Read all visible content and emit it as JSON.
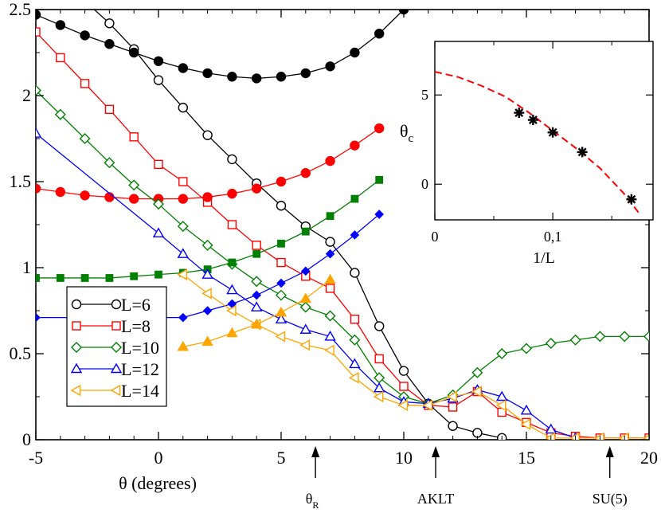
{
  "chart_data": [
    {
      "type": "line",
      "xlabel": "θ (degrees)",
      "ylabel": "",
      "xlim": [
        -5,
        20
      ],
      "ylim": [
        0,
        2.5
      ],
      "xticks": [
        "-5",
        "0",
        "5",
        "10",
        "15",
        "20"
      ],
      "yticks": [
        "0",
        "0.5",
        "1",
        "1.5",
        "2",
        "2.5"
      ],
      "grid": false,
      "legend_position": "bottom-left",
      "annotations": [
        {
          "text": "θ",
          "sub": "R",
          "x": 6.4
        },
        {
          "text": "AKLT",
          "x": 11.3
        },
        {
          "text": "SU(5)",
          "x": 18.4
        }
      ],
      "series": [
        {
          "name": "L=6",
          "color": "#000000",
          "marker": "circle-open",
          "legend": true,
          "x": [
            -4,
            -3,
            -2,
            -1,
            0,
            1,
            2,
            3,
            4,
            5,
            6,
            7,
            8,
            9,
            10,
            11,
            12,
            13,
            14
          ],
          "y": [
            2.65,
            2.55,
            2.42,
            2.27,
            2.09,
            1.93,
            1.77,
            1.63,
            1.49,
            1.36,
            1.24,
            1.15,
            0.97,
            0.66,
            0.4,
            0.21,
            0.08,
            0.04,
            0.01
          ]
        },
        {
          "name": "L=6 (filled)",
          "color": "#000000",
          "marker": "circle-filled",
          "legend": false,
          "x": [
            -5,
            -4,
            -3,
            -2,
            -1,
            0,
            1,
            2,
            3,
            4,
            5,
            6,
            7,
            8,
            9,
            10
          ],
          "y": [
            2.47,
            2.41,
            2.35,
            2.3,
            2.25,
            2.2,
            2.16,
            2.13,
            2.11,
            2.1,
            2.11,
            2.13,
            2.17,
            2.25,
            2.36,
            2.5
          ]
        },
        {
          "name": "L=8",
          "color": "#ff0000",
          "marker": "square-open",
          "legend": true,
          "x": [
            -5,
            -4,
            -3,
            -2,
            -1,
            0,
            1,
            2,
            3,
            4,
            5,
            6,
            7,
            8,
            9,
            10,
            11,
            12,
            13,
            14,
            15,
            16,
            17,
            18,
            19,
            20
          ],
          "y": [
            2.37,
            2.22,
            2.07,
            1.92,
            1.76,
            1.6,
            1.5,
            1.38,
            1.25,
            1.13,
            1.03,
            0.95,
            0.88,
            0.7,
            0.47,
            0.31,
            0.2,
            0.19,
            0.28,
            0.16,
            0.1,
            0.04,
            0.02,
            0.01,
            0.01,
            0.01
          ]
        },
        {
          "name": "L=8 (filled)",
          "color": "#ff0000",
          "marker": "circle-filled",
          "legend": false,
          "x": [
            -5,
            -4,
            -3,
            -2,
            -1,
            0,
            1,
            2,
            3,
            4,
            5,
            6,
            7,
            8,
            9
          ],
          "y": [
            1.46,
            1.44,
            1.42,
            1.41,
            1.4,
            1.4,
            1.4,
            1.41,
            1.43,
            1.46,
            1.5,
            1.55,
            1.62,
            1.71,
            1.81
          ]
        },
        {
          "name": "L=10",
          "color": "#008000",
          "marker": "diamond-open",
          "legend": true,
          "x": [
            -5,
            -4,
            -3,
            -2,
            -1,
            0,
            1,
            2,
            3,
            4,
            5,
            6,
            7,
            8,
            9,
            10,
            11,
            12,
            13,
            14,
            15,
            16,
            17,
            18,
            19,
            20
          ],
          "y": [
            2.03,
            1.89,
            1.75,
            1.61,
            1.48,
            1.37,
            1.24,
            1.13,
            1.02,
            0.92,
            0.84,
            0.77,
            0.72,
            0.58,
            0.36,
            0.25,
            0.21,
            0.26,
            0.39,
            0.5,
            0.53,
            0.56,
            0.58,
            0.6,
            0.6,
            0.6
          ]
        },
        {
          "name": "L=10 (filled)",
          "color": "#008000",
          "marker": "square-filled",
          "legend": false,
          "x": [
            -5,
            -4,
            -3,
            -2,
            -1,
            0,
            1,
            2,
            3,
            4,
            5,
            6,
            7,
            8,
            9
          ],
          "y": [
            0.94,
            0.94,
            0.94,
            0.94,
            0.95,
            0.96,
            0.97,
            0.99,
            1.03,
            1.08,
            1.14,
            1.21,
            1.3,
            1.4,
            1.51
          ]
        },
        {
          "name": "L=12",
          "color": "#0000ff",
          "marker": "triangle-up-open",
          "legend": true,
          "x": [
            -5,
            0,
            1,
            2,
            3,
            4,
            5,
            6,
            7,
            8,
            9,
            10,
            11,
            12,
            13,
            14,
            15,
            16,
            17
          ],
          "y": [
            1.78,
            1.2,
            1.08,
            0.96,
            0.87,
            0.77,
            0.7,
            0.64,
            0.6,
            0.44,
            0.3,
            0.22,
            0.21,
            0.24,
            0.29,
            0.25,
            0.17,
            0.06,
            0.01
          ]
        },
        {
          "name": "L=12 (filled)",
          "color": "#0000ff",
          "marker": "diamond-filled",
          "legend": false,
          "x": [
            -5,
            1,
            2,
            3,
            4,
            5,
            6,
            7,
            8,
            9
          ],
          "y": [
            0.71,
            0.71,
            0.75,
            0.79,
            0.84,
            0.91,
            0.98,
            1.08,
            1.19,
            1.31
          ]
        },
        {
          "name": "L=14",
          "color": "#ffa500",
          "marker": "triangle-left-open",
          "legend": true,
          "x": [
            1,
            2,
            3,
            4,
            5,
            6,
            7,
            8,
            9,
            10,
            11,
            12,
            13,
            14,
            15,
            16,
            17,
            18,
            19,
            20
          ],
          "y": [
            0.96,
            0.85,
            0.75,
            0.67,
            0.6,
            0.55,
            0.52,
            0.36,
            0.25,
            0.2,
            0.2,
            0.25,
            0.28,
            0.2,
            0.09,
            0.01,
            0.01,
            0.01,
            0.01,
            0.01
          ]
        },
        {
          "name": "L=14 (filled)",
          "color": "#ffa500",
          "marker": "triangle-up-filled",
          "legend": false,
          "x": [
            1,
            2,
            3,
            4,
            5,
            6,
            7
          ],
          "y": [
            0.54,
            0.57,
            0.62,
            0.67,
            0.74,
            0.82,
            0.93
          ]
        }
      ]
    },
    {
      "type": "scatter",
      "xlabel": "1/L",
      "ylabel": "θ",
      "ylabel_sub": "c",
      "xlim": [
        0,
        0.185
      ],
      "ylim": [
        -2.0,
        8.0
      ],
      "xticks": [
        {
          "value": 0,
          "label": "0"
        },
        {
          "value": 0.1,
          "label": "0,1"
        }
      ],
      "yticks": [
        {
          "value": 0,
          "label": "0"
        },
        {
          "value": 5,
          "label": "5"
        }
      ],
      "points": {
        "marker": "asterisk",
        "color": "#000000",
        "x": [
          0.0714,
          0.0833,
          0.1,
          0.125,
          0.1667
        ],
        "y": [
          4.0,
          3.6,
          2.9,
          1.8,
          -0.85
        ]
      },
      "fit": {
        "color": "#ff0000",
        "style": "dashed",
        "x": [
          0,
          0.02,
          0.04,
          0.06,
          0.08,
          0.1,
          0.12,
          0.14,
          0.16,
          0.174
        ],
        "y": [
          6.3,
          6.0,
          5.5,
          4.9,
          4.0,
          3.0,
          2.0,
          0.9,
          -0.5,
          -1.7
        ]
      }
    }
  ]
}
